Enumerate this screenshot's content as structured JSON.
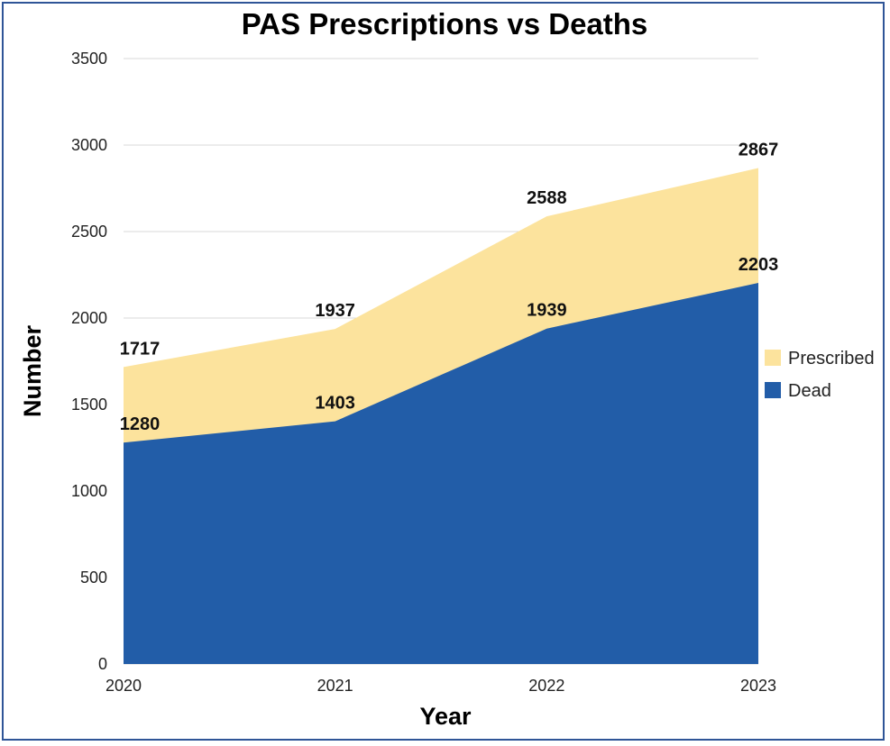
{
  "chart_data": {
    "type": "area",
    "title": "PAS Prescriptions vs Deaths",
    "xlabel": "Year",
    "ylabel": "Number",
    "x": [
      "2020",
      "2021",
      "2022",
      "2023"
    ],
    "ylim": [
      0,
      3500
    ],
    "yticks": [
      "0",
      "500",
      "1000",
      "1500",
      "2000",
      "2500",
      "3000",
      "3500"
    ],
    "grid": true,
    "legend_position": "right",
    "series": [
      {
        "name": "Prescribed",
        "values": [
          1717,
          1937,
          2588,
          2867
        ],
        "color": "#fce39d"
      },
      {
        "name": "Dead",
        "values": [
          1280,
          1403,
          1939,
          2203
        ],
        "color": "#225da8"
      }
    ]
  }
}
